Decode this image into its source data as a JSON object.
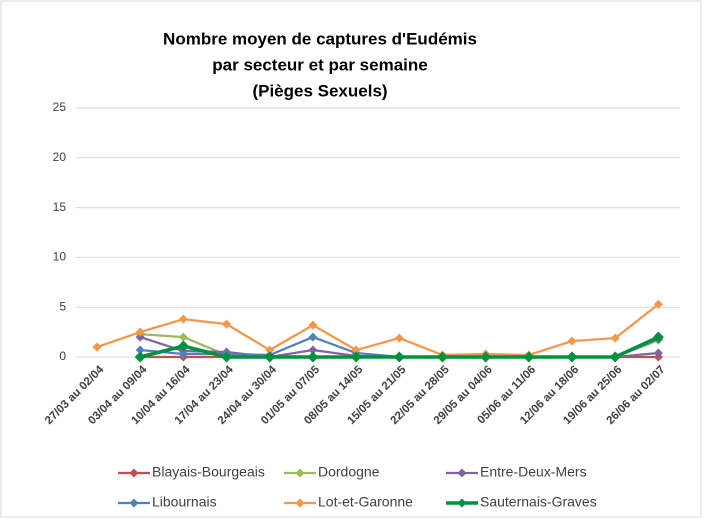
{
  "chart_data": {
    "type": "line",
    "title": [
      "Nombre moyen de captures d'Eudémis",
      "par secteur et par semaine",
      "(Pièges Sexuels)"
    ],
    "categories": [
      "27/03 au 02/04",
      "03/04 au 09/04",
      "10/04 au 16/04",
      "17/04 au 23/04",
      "24/04 au 30/04",
      "01/05 au 07/05",
      "08/05 au 14/05",
      "15/05 au 21/05",
      "22/05 au 28/05",
      "29/05 au 04/06",
      "05/06 au 11/06",
      "12/06 au 18/06",
      "19/06 au 25/06",
      "26/06 au 02/07"
    ],
    "series": [
      {
        "name": "Blayais-Bourgeais",
        "color": "#c0504d",
        "values": [
          null,
          0,
          0,
          0,
          0,
          0,
          0,
          0,
          0,
          0,
          0,
          0,
          0,
          0
        ]
      },
      {
        "name": "Dordogne",
        "color": "#9bbb59",
        "values": [
          null,
          2.3,
          2.0,
          0.2,
          0.1,
          0,
          0,
          0,
          0,
          0,
          0,
          0,
          0,
          1.7
        ]
      },
      {
        "name": "Entre-Deux-Mers",
        "color": "#8064a2",
        "values": [
          null,
          2.0,
          0.6,
          0.5,
          0,
          0.7,
          0.1,
          0,
          0,
          0,
          0,
          0,
          0,
          0.4
        ]
      },
      {
        "name": "Libournais",
        "color": "#4f81bd",
        "values": [
          null,
          0.7,
          0.3,
          0.3,
          0.2,
          2.0,
          0.4,
          0,
          0,
          0,
          0,
          0,
          0,
          1.8
        ]
      },
      {
        "name": "Lot-et-Garonne",
        "color": "#f79646",
        "values": [
          1.0,
          2.5,
          3.8,
          3.3,
          0.7,
          3.2,
          0.7,
          1.9,
          0.2,
          0.3,
          0.2,
          1.6,
          1.9,
          5.3
        ]
      },
      {
        "name": "Sauternais-Graves",
        "color": "#00913f",
        "values": [
          null,
          0,
          1.1,
          0,
          0,
          0,
          0,
          0,
          0,
          0,
          0,
          0,
          0,
          2.0
        ]
      }
    ],
    "ylim": [
      0,
      25
    ],
    "yticks": [
      0,
      5,
      10,
      15,
      20,
      25
    ],
    "grid": true,
    "legend": "bottom"
  }
}
